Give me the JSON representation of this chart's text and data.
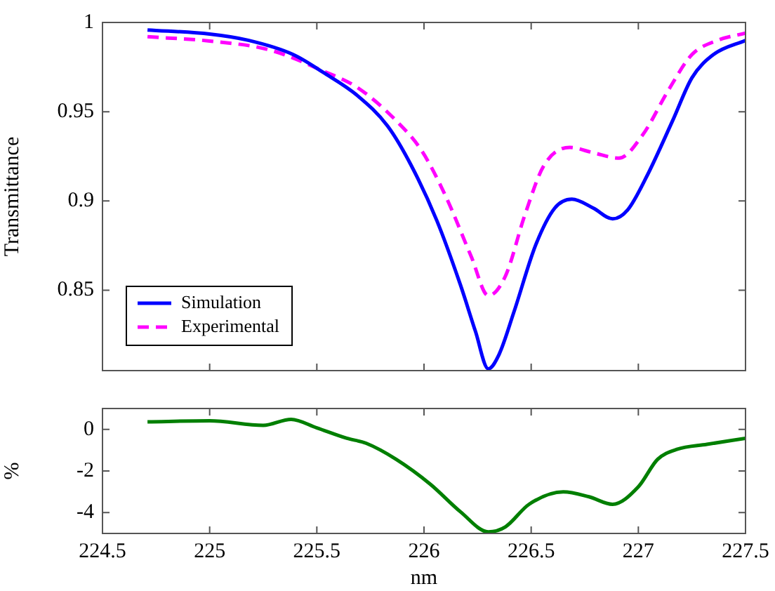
{
  "chart_data": [
    {
      "type": "line",
      "ylabel": "Transmittance",
      "xlim": [
        224.5,
        227.5
      ],
      "xticks": [
        224.5,
        225,
        225.5,
        226,
        226.5,
        227,
        227.5
      ],
      "ylim": [
        0.805,
        1
      ],
      "yticks": [
        0.85,
        0.9,
        0.95,
        1
      ],
      "tick_labels": "y",
      "legend": "bottom left",
      "grid": false,
      "series": [
        {
          "name": "Simulation",
          "color": "#0000ff",
          "line_style": "solid",
          "x": [
            224.71,
            225.0,
            225.18,
            225.39,
            225.53,
            225.69,
            225.83,
            225.94,
            226.06,
            226.17,
            226.24,
            226.3,
            226.35,
            226.42,
            226.52,
            226.61,
            226.69,
            226.79,
            226.88,
            226.95,
            227.04,
            227.16,
            227.25,
            227.35,
            227.5
          ],
          "values": [
            0.9958,
            0.9935,
            0.99,
            0.982,
            0.972,
            0.959,
            0.942,
            0.92,
            0.889,
            0.853,
            0.827,
            0.806,
            0.814,
            0.838,
            0.875,
            0.896,
            0.901,
            0.896,
            0.89,
            0.895,
            0.914,
            0.945,
            0.969,
            0.982,
            0.99
          ]
        },
        {
          "name": "Experimental",
          "color": "#ff00ff",
          "line_style": "dashed",
          "x": [
            224.71,
            225.0,
            225.28,
            225.53,
            225.69,
            225.87,
            225.99,
            226.1,
            226.22,
            226.3,
            226.38,
            226.47,
            226.56,
            226.68,
            226.79,
            226.91,
            227.02,
            227.14,
            227.25,
            227.37,
            227.5
          ],
          "values": [
            0.992,
            0.9896,
            0.9846,
            0.9728,
            0.9635,
            0.945,
            0.928,
            0.903,
            0.869,
            0.847,
            0.858,
            0.892,
            0.92,
            0.93,
            0.927,
            0.924,
            0.937,
            0.962,
            0.982,
            0.99,
            0.994
          ]
        }
      ]
    },
    {
      "type": "line",
      "xlabel": "nm",
      "ylabel": "%",
      "xlim": [
        224.5,
        227.5
      ],
      "xticks": [
        224.5,
        225,
        225.5,
        226,
        226.5,
        227,
        227.5
      ],
      "ylim": [
        -5,
        1
      ],
      "yticks": [
        -4,
        -2,
        0
      ],
      "grid": false,
      "series": [
        {
          "color": "#007f00",
          "line_style": "solid",
          "x": [
            224.71,
            225.0,
            225.25,
            225.38,
            225.5,
            225.64,
            225.73,
            225.87,
            226.03,
            226.17,
            226.3,
            226.38,
            226.49,
            226.65,
            226.77,
            226.88,
            227.0,
            227.09,
            227.18,
            227.32,
            227.5
          ],
          "values": [
            0.36,
            0.41,
            0.19,
            0.48,
            0.07,
            -0.43,
            -0.67,
            -1.44,
            -2.64,
            -3.96,
            -4.92,
            -4.68,
            -3.6,
            -3.0,
            -3.24,
            -3.6,
            -2.76,
            -1.44,
            -0.96,
            -0.72,
            -0.43
          ]
        }
      ]
    }
  ]
}
